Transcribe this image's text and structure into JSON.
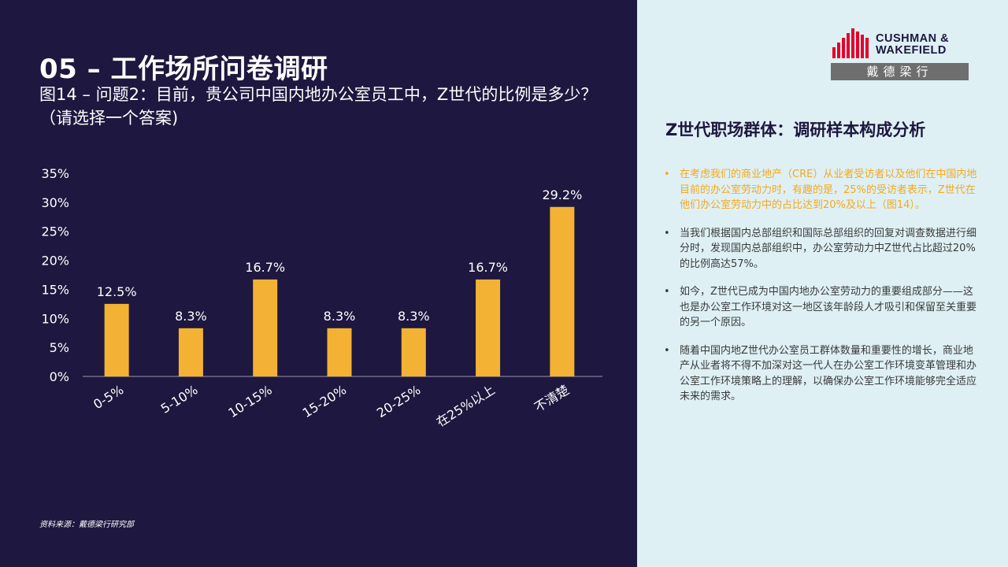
{
  "header": {
    "title": "05 – 工作场所问卷调研",
    "subtitle": "图14 – 问题2：目前，贵公司中国内地办公室员工中，Z世代的比例是多少？（请选择一个答案)"
  },
  "source": "资料来源：戴德梁行研究部",
  "logo": {
    "line1": "CUSHMAN &",
    "line2": "WAKEFIELD",
    "cn": "戴德梁行",
    "bar_color": "#e4002b"
  },
  "panel": {
    "title": "Z世代职场群体：调研样本构成分析",
    "points": [
      "在考虑我们的商业地产（CRE）从业者受访者以及他们在中国内地目前的办公室劳动力时，有趣的是，25%的受访者表示，Z世代在他们办公室劳动力中的占比达到20%及以上（图14）。",
      "当我们根据国内总部组织和国际总部组织的回复对调查数据进行细分时，发现国内总部组织中，办公室劳动力中Z世代占比超过20%的比例高达57%。",
      "如今，Z世代已成为中国内地办公室劳动力的重要组成部分——这也是办公室工作环境对这一地区该年龄段人才吸引和保留至关重要的另一个原因。",
      "随着中国内地Z世代办公室员工群体数量和重要性的增长，商业地产从业者将不得不加深对这一代人在办公室工作环境变革管理和办公室工作环境策略上的理解，以确保办公室工作环境能够完全适应未来的需求。"
    ]
  },
  "colors": {
    "left_bg": "#1e173f",
    "right_bg": "#def0f4",
    "bar": "#f3b233",
    "highlight_text": "#f6a81c"
  },
  "chart_data": {
    "type": "bar",
    "categories": [
      "0-5%",
      "5-10%",
      "10-15%",
      "15-20%",
      "20-25%",
      "在25%以上",
      "不清楚"
    ],
    "values": [
      12.5,
      8.3,
      16.7,
      8.3,
      8.3,
      16.7,
      29.2
    ],
    "value_labels": [
      "12.5%",
      "8.3%",
      "16.7%",
      "8.3%",
      "8.3%",
      "16.7%",
      "29.2%"
    ],
    "yticks": [
      "0%",
      "5%",
      "10%",
      "15%",
      "20%",
      "25%",
      "30%",
      "35%"
    ],
    "ylim": [
      0,
      35
    ],
    "grid": false,
    "legend": "none"
  }
}
